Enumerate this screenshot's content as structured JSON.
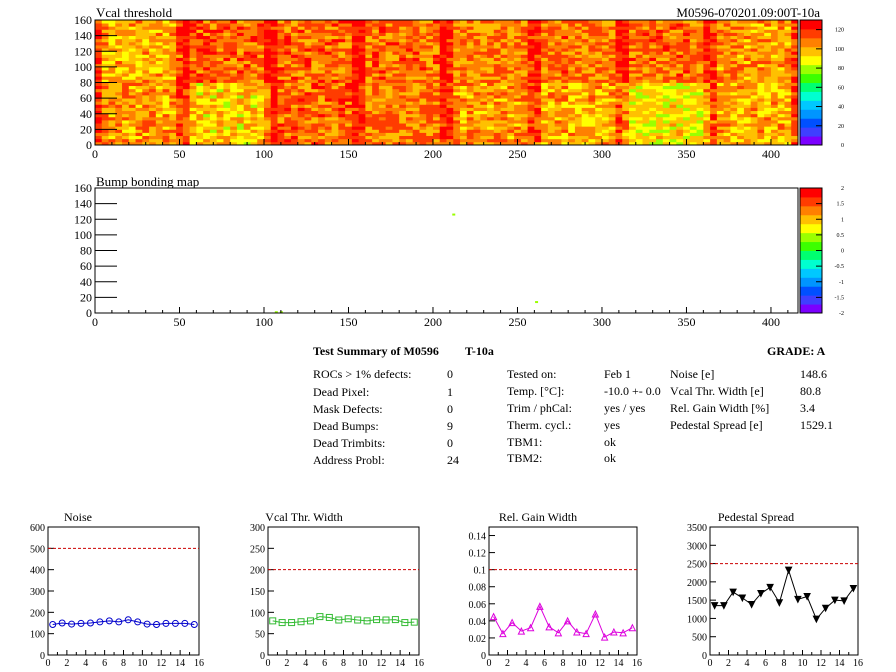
{
  "colors": {
    "heat": [
      "#7b00ff",
      "#3f3fff",
      "#0050ff",
      "#0095ff",
      "#00c8ff",
      "#00ffd0",
      "#00ff70",
      "#3cff00",
      "#9aff00",
      "#ffff00",
      "#ffc000",
      "#ff8000",
      "#ff3c00",
      "#ff0000"
    ],
    "noise": "#0000cc",
    "vcal": "#33bb33",
    "gain": "#dd00dd",
    "pedestal": "#000000",
    "limit": "#cc0000"
  },
  "chart_data": [
    {
      "type": "heatmap",
      "title": "Vcal threshold",
      "title_right": "M0596-070201.09:00T-10a",
      "xlim": [
        0,
        416
      ],
      "ylim": [
        0,
        160
      ],
      "xticks": [
        "0",
        "50",
        "100",
        "150",
        "200",
        "250",
        "300",
        "350",
        "400"
      ],
      "yticks": [
        "0",
        "20",
        "40",
        "60",
        "80",
        "100",
        "120",
        "140",
        "160"
      ],
      "zlim": [
        0,
        130
      ],
      "zticks": [
        "0",
        "20",
        "40",
        "60",
        "80",
        "100",
        "120"
      ],
      "roc_grid": {
        "cols": 8,
        "rows": 2,
        "roc_width": 52,
        "roc_height": 80
      },
      "roc_mean_values": [
        [
          103,
          95,
          110,
          108,
          103,
          100,
          90,
          100
        ],
        [
          100,
          112,
          110,
          110,
          106,
          108,
          110,
          104
        ]
      ]
    },
    {
      "type": "heatmap",
      "title": "Bump bonding map",
      "xlim": [
        0,
        416
      ],
      "ylim": [
        0,
        160
      ],
      "xticks": [
        "0",
        "50",
        "100",
        "150",
        "200",
        "250",
        "300",
        "350",
        "400"
      ],
      "yticks": [
        "0",
        "20",
        "40",
        "60",
        "80",
        "100",
        "120",
        "140",
        "160"
      ],
      "zlim": [
        -2,
        2
      ],
      "zticks": [
        "-2",
        "-1.5",
        "-1",
        "-0.5",
        "0",
        "0.5",
        "1",
        "1.5",
        "2"
      ],
      "points": [
        {
          "x": 107,
          "y": 1,
          "z": 0.5
        },
        {
          "x": 110,
          "y": 1,
          "z": 0.5
        },
        {
          "x": 212,
          "y": 126,
          "z": 0.5
        },
        {
          "x": 261,
          "y": 14,
          "z": 0.5
        }
      ]
    },
    {
      "type": "line",
      "title": "Noise",
      "xlim": [
        0,
        16
      ],
      "ylim": [
        0,
        600
      ],
      "xticks": [
        "0",
        "2",
        "4",
        "6",
        "8",
        "10",
        "12",
        "14",
        "16"
      ],
      "yticks": [
        "0",
        "100",
        "200",
        "300",
        "400",
        "500",
        "600"
      ],
      "limit": 500,
      "marker": "circle",
      "x": [
        0.5,
        1.5,
        2.5,
        3.5,
        4.5,
        5.5,
        6.5,
        7.5,
        8.5,
        9.5,
        10.5,
        11.5,
        12.5,
        13.5,
        14.5,
        15.5
      ],
      "values": [
        143,
        150,
        145,
        148,
        150,
        155,
        160,
        155,
        165,
        155,
        145,
        143,
        148,
        148,
        148,
        143
      ]
    },
    {
      "type": "line",
      "title": "Vcal Thr. Width",
      "xlim": [
        0,
        16
      ],
      "ylim": [
        0,
        300
      ],
      "xticks": [
        "0",
        "2",
        "4",
        "6",
        "8",
        "10",
        "12",
        "14",
        "16"
      ],
      "yticks": [
        "0",
        "50",
        "100",
        "150",
        "200",
        "250",
        "300"
      ],
      "limit": 200,
      "marker": "square",
      "x": [
        0.5,
        1.5,
        2.5,
        3.5,
        4.5,
        5.5,
        6.5,
        7.5,
        8.5,
        9.5,
        10.5,
        11.5,
        12.5,
        13.5,
        14.5,
        15.5
      ],
      "values": [
        80,
        76,
        76,
        78,
        80,
        90,
        88,
        82,
        85,
        82,
        80,
        83,
        82,
        83,
        76,
        77
      ]
    },
    {
      "type": "line",
      "title": "Rel. Gain Width",
      "xlim": [
        0,
        16
      ],
      "ylim": [
        0,
        0.15
      ],
      "xticks": [
        "0",
        "2",
        "4",
        "6",
        "8",
        "10",
        "12",
        "14",
        "16"
      ],
      "yticks": [
        "0",
        "0.02",
        "0.04",
        "0.06",
        "0.08",
        "0.1",
        "0.12",
        "0.14"
      ],
      "limit": 0.1,
      "marker": "triangle",
      "x": [
        0.5,
        1.5,
        2.5,
        3.5,
        4.5,
        5.5,
        6.5,
        7.5,
        8.5,
        9.5,
        10.5,
        11.5,
        12.5,
        13.5,
        14.5,
        15.5
      ],
      "values": [
        0.045,
        0.025,
        0.038,
        0.028,
        0.032,
        0.057,
        0.033,
        0.026,
        0.04,
        0.027,
        0.025,
        0.048,
        0.021,
        0.027,
        0.026,
        0.032
      ]
    },
    {
      "type": "line",
      "title": "Pedestal Spread",
      "xlim": [
        0,
        16
      ],
      "ylim": [
        0,
        3500
      ],
      "xticks": [
        "0",
        "2",
        "4",
        "6",
        "8",
        "10",
        "12",
        "14",
        "16"
      ],
      "yticks": [
        "0",
        "500",
        "1000",
        "1500",
        "2000",
        "2500",
        "3000",
        "3500"
      ],
      "limit": 2500,
      "marker": "triangle-down",
      "x": [
        0.5,
        1.5,
        2.5,
        3.5,
        4.5,
        5.5,
        6.5,
        7.5,
        8.5,
        9.5,
        10.5,
        11.5,
        12.5,
        13.5,
        14.5,
        15.5
      ],
      "values": [
        1350,
        1350,
        1720,
        1560,
        1380,
        1680,
        1850,
        1430,
        2320,
        1520,
        1600,
        980,
        1280,
        1500,
        1480,
        1820
      ]
    }
  ],
  "summary": {
    "title": "Test Summary of M0596",
    "temp_tag": "T-10a",
    "grade": "GRADE:  A",
    "defects": [
      {
        "label": "ROCs > 1% defects:",
        "value": "0"
      },
      {
        "label": "Dead Pixel:",
        "value": "1"
      },
      {
        "label": "Mask Defects:",
        "value": "0"
      },
      {
        "label": "Dead Bumps:",
        "value": "9"
      },
      {
        "label": "Dead Trimbits:",
        "value": "0"
      },
      {
        "label": "Address Probl:",
        "value": "24"
      }
    ],
    "conditions": [
      {
        "label": "Tested on:",
        "value": "Feb 1"
      },
      {
        "label": "Temp. [°C]:",
        "value": "-10.0 +- 0.0"
      },
      {
        "label": "Trim / phCal:",
        "value": "yes / yes"
      },
      {
        "label": "Therm. cycl.:",
        "value": "yes"
      },
      {
        "label": "TBM1:",
        "value": "ok"
      },
      {
        "label": "TBM2:",
        "value": "ok"
      }
    ],
    "performance": [
      {
        "label": "Noise [e]",
        "value": "148.6"
      },
      {
        "label": "Vcal Thr. Width [e]",
        "value": "80.8"
      },
      {
        "label": "Rel. Gain Width [%]",
        "value": "3.4"
      },
      {
        "label": "Pedestal Spread [e]",
        "value": "1529.1"
      }
    ]
  }
}
